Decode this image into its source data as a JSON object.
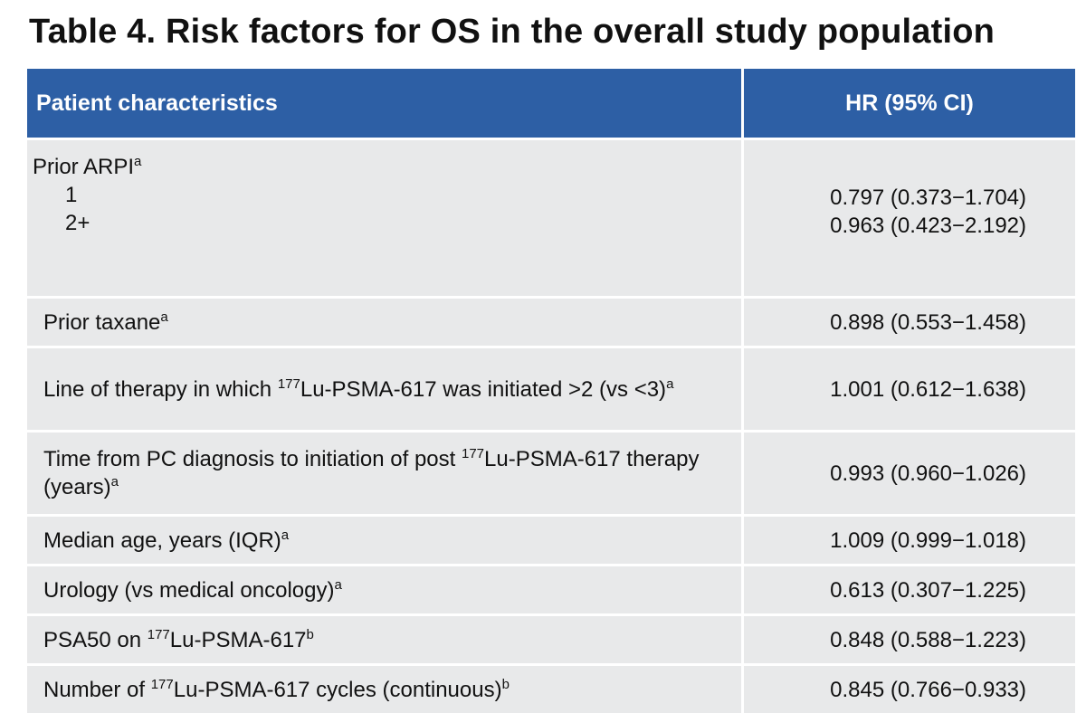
{
  "title": "Table 4. Risk factors for OS in the overall study population",
  "table": {
    "headers": [
      "Patient characteristics",
      "HR (95% CI)"
    ],
    "prior_arpi": {
      "label": "Prior ARPI",
      "label_sup": "a",
      "items": [
        {
          "label": "1",
          "hr": "0.797 (0.373−1.704)"
        },
        {
          "label": "2+",
          "hr": "0.963 (0.423−2.192)"
        }
      ]
    },
    "rows": [
      {
        "pre": "Prior taxane",
        "sup": "a",
        "hr": "0.898 (0.553−1.458)"
      },
      {
        "pre": "Line of therapy in which ",
        "iso": "177",
        "mid": "Lu-PSMA-617 was initiated >2 (vs <3)",
        "sup": "a",
        "hr": "1.001 (0.612−1.638)"
      },
      {
        "pre": "Time from PC diagnosis to initiation of post ",
        "iso": "177",
        "mid": "Lu-PSMA-617 therapy (years)",
        "sup": "a",
        "hr": "0.993 (0.960−1.026)"
      },
      {
        "pre": "Median age, years (IQR)",
        "sup": "a",
        "hr": "1.009 (0.999−1.018)"
      },
      {
        "pre": "Urology (vs medical oncology)",
        "sup": "a",
        "hr": "0.613 (0.307−1.225)"
      },
      {
        "pre": "PSA50 on ",
        "iso": "177",
        "mid": "Lu-PSMA-617",
        "sup": "b",
        "hr": "0.848 (0.588−1.223)"
      },
      {
        "pre": "Number of ",
        "iso": "177",
        "mid": "Lu-PSMA-617 cycles (continuous)",
        "sup": "b",
        "hr": "0.845 (0.766−0.933)"
      }
    ]
  }
}
